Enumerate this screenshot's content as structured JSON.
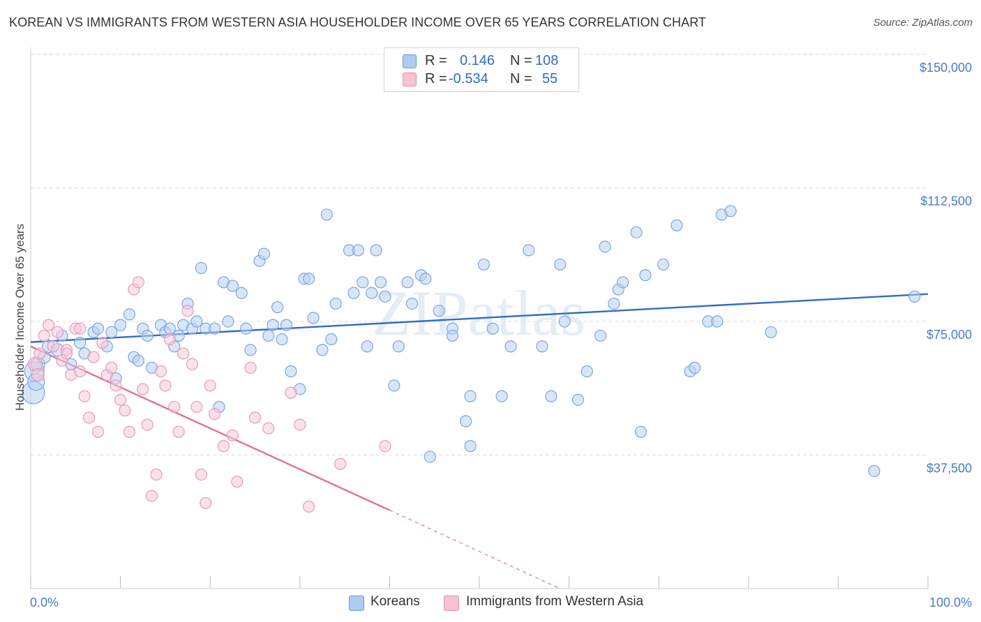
{
  "title": "KOREAN VS IMMIGRANTS FROM WESTERN ASIA HOUSEHOLDER INCOME OVER 65 YEARS CORRELATION CHART",
  "source": "Source: ZipAtlas.com",
  "watermark": "ZIPatlas",
  "legend": {
    "rows": [
      {
        "r_label": "R =",
        "r_value": "0.146",
        "n_label": "N =",
        "n_value": "108",
        "color": "#aecbf0",
        "border": "#6f9ad8"
      },
      {
        "r_label": "R =",
        "r_value": "-0.534",
        "n_label": "N =",
        "n_value": "55",
        "color": "#f7c2d3",
        "border": "#e88aa8"
      }
    ]
  },
  "bottom_legend": [
    "Koreans",
    "Immigrants from Western Asia"
  ],
  "chart_data": {
    "type": "scatter",
    "ylabel": "Householder Income Over 65 years",
    "xlim": [
      0,
      100
    ],
    "ylim": [
      0,
      150000
    ],
    "y_ticks": [
      {
        "value": 37500,
        "label": "$37,500"
      },
      {
        "value": 75000,
        "label": "$75,000"
      },
      {
        "value": 112500,
        "label": "$112,500"
      },
      {
        "value": 150000,
        "label": "$150,000"
      }
    ],
    "x_tick_labels": [
      {
        "value": 0,
        "label": "0.0%"
      },
      {
        "value": 100,
        "label": "100.0%"
      }
    ],
    "series": [
      {
        "name": "Koreans",
        "color": "#7aa6e0",
        "fill": "#b9d2f3",
        "trend": {
          "x0": 0,
          "y0": 69200,
          "x1": 100,
          "y1": 82700,
          "dashed_from": null
        },
        "points": [
          [
            0.3,
            55000,
            16
          ],
          [
            0.4,
            61000,
            14
          ],
          [
            0.6,
            58000,
            12
          ],
          [
            0.8,
            63000,
            10
          ],
          [
            1.5,
            65000,
            9
          ],
          [
            2.0,
            68000,
            9
          ],
          [
            3.0,
            67000,
            9
          ],
          [
            3.5,
            71000,
            8
          ],
          [
            4.5,
            63000,
            8
          ],
          [
            5.5,
            69000,
            8
          ],
          [
            6.0,
            66000,
            8
          ],
          [
            7.0,
            72000,
            8
          ],
          [
            7.5,
            73000,
            8
          ],
          [
            8.5,
            68000,
            8
          ],
          [
            9.0,
            72000,
            8
          ],
          [
            9.5,
            59000,
            8
          ],
          [
            10.0,
            74000,
            8
          ],
          [
            11.0,
            77000,
            8
          ],
          [
            11.5,
            65000,
            8
          ],
          [
            12.0,
            64000,
            8
          ],
          [
            12.5,
            73000,
            8
          ],
          [
            13.0,
            71000,
            8
          ],
          [
            13.5,
            62000,
            8
          ],
          [
            14.5,
            74000,
            8
          ],
          [
            15.0,
            72000,
            8
          ],
          [
            15.5,
            73000,
            8
          ],
          [
            16.0,
            68000,
            8
          ],
          [
            16.5,
            71000,
            8
          ],
          [
            17.0,
            74000,
            8
          ],
          [
            17.5,
            80000,
            8
          ],
          [
            18.0,
            73000,
            8
          ],
          [
            18.5,
            75000,
            8
          ],
          [
            19.0,
            90000,
            8
          ],
          [
            19.5,
            73000,
            8
          ],
          [
            20.5,
            73000,
            8
          ],
          [
            21.0,
            51000,
            8
          ],
          [
            21.5,
            86000,
            8
          ],
          [
            22.0,
            75000,
            8
          ],
          [
            22.5,
            85000,
            8
          ],
          [
            23.5,
            83000,
            8
          ],
          [
            24.0,
            73000,
            8
          ],
          [
            24.5,
            67000,
            8
          ],
          [
            25.5,
            92000,
            8
          ],
          [
            26.0,
            94000,
            8
          ],
          [
            26.5,
            71000,
            8
          ],
          [
            27.0,
            74000,
            8
          ],
          [
            27.5,
            79000,
            8
          ],
          [
            28.0,
            70000,
            8
          ],
          [
            28.5,
            74000,
            8
          ],
          [
            29.0,
            61000,
            8
          ],
          [
            30.0,
            56000,
            8
          ],
          [
            30.5,
            87000,
            8
          ],
          [
            31.0,
            87000,
            8
          ],
          [
            31.5,
            76000,
            8
          ],
          [
            32.5,
            67000,
            8
          ],
          [
            33.0,
            105000,
            8
          ],
          [
            33.5,
            70000,
            8
          ],
          [
            34.0,
            80000,
            8
          ],
          [
            35.5,
            95000,
            8
          ],
          [
            36.0,
            83000,
            8
          ],
          [
            36.5,
            95000,
            8
          ],
          [
            37.0,
            86000,
            8
          ],
          [
            37.5,
            68000,
            8
          ],
          [
            38.0,
            83000,
            8
          ],
          [
            38.5,
            95000,
            8
          ],
          [
            39.0,
            86000,
            8
          ],
          [
            39.5,
            82000,
            8
          ],
          [
            40.5,
            57000,
            8
          ],
          [
            41.0,
            68000,
            8
          ],
          [
            42.0,
            86000,
            8
          ],
          [
            42.5,
            80000,
            8
          ],
          [
            43.5,
            88000,
            8
          ],
          [
            44.0,
            87000,
            8
          ],
          [
            44.5,
            37000,
            8
          ],
          [
            45.5,
            78000,
            8
          ],
          [
            47.0,
            73000,
            8
          ],
          [
            47.0,
            71000,
            8
          ],
          [
            48.5,
            47000,
            8
          ],
          [
            49.0,
            40000,
            8
          ],
          [
            49.0,
            54000,
            8
          ],
          [
            50.5,
            91000,
            8
          ],
          [
            51.5,
            73000,
            8
          ],
          [
            52.5,
            54000,
            8
          ],
          [
            53.5,
            68000,
            8
          ],
          [
            55.5,
            95000,
            8
          ],
          [
            57.0,
            68000,
            8
          ],
          [
            58.0,
            54000,
            8
          ],
          [
            59.0,
            91000,
            8
          ],
          [
            59.5,
            75000,
            8
          ],
          [
            61.0,
            53000,
            8
          ],
          [
            62.0,
            61000,
            8
          ],
          [
            63.5,
            71000,
            8
          ],
          [
            64.0,
            96000,
            8
          ],
          [
            65.0,
            80000,
            8
          ],
          [
            65.5,
            84000,
            8
          ],
          [
            66.0,
            86000,
            8
          ],
          [
            67.5,
            100000,
            8
          ],
          [
            68.5,
            88000,
            8
          ],
          [
            68.0,
            44000,
            8
          ],
          [
            70.5,
            91000,
            8
          ],
          [
            72.0,
            102000,
            8
          ],
          [
            73.5,
            61000,
            8
          ],
          [
            74.0,
            62000,
            8
          ],
          [
            75.5,
            75000,
            8
          ],
          [
            76.5,
            75000,
            8
          ],
          [
            77.0,
            105000,
            8
          ],
          [
            78.0,
            106000,
            8
          ],
          [
            82.5,
            72000,
            8
          ],
          [
            98.5,
            82000,
            8
          ],
          [
            94.0,
            33000,
            8
          ]
        ]
      },
      {
        "name": "Immigrants from Western Asia",
        "color": "#e89ab4",
        "fill": "#f8c9d8",
        "trend": {
          "x0": 0,
          "y0": 68000,
          "x1": 40,
          "y1": 22000,
          "dashed_from": 40,
          "dash_x1": 65,
          "dash_y1": -7000
        },
        "points": [
          [
            0.5,
            63000,
            10
          ],
          [
            0.8,
            60000,
            9
          ],
          [
            1.0,
            66000,
            8
          ],
          [
            1.5,
            71000,
            8
          ],
          [
            2.0,
            74000,
            8
          ],
          [
            2.5,
            68000,
            8
          ],
          [
            3.0,
            72000,
            8
          ],
          [
            3.5,
            64000,
            8
          ],
          [
            4.0,
            67000,
            8
          ],
          [
            4.5,
            60000,
            8
          ],
          [
            5.0,
            73000,
            8
          ],
          [
            5.5,
            61000,
            8
          ],
          [
            6.0,
            54000,
            8
          ],
          [
            6.5,
            48000,
            8
          ],
          [
            7.0,
            65000,
            8
          ],
          [
            7.5,
            44000,
            8
          ],
          [
            8.0,
            69000,
            8
          ],
          [
            8.5,
            60000,
            8
          ],
          [
            9.0,
            62000,
            8
          ],
          [
            9.5,
            57000,
            8
          ],
          [
            10.0,
            53000,
            8
          ],
          [
            10.5,
            50000,
            8
          ],
          [
            11.0,
            44000,
            8
          ],
          [
            11.5,
            84000,
            8
          ],
          [
            12.0,
            86000,
            8
          ],
          [
            12.5,
            56000,
            8
          ],
          [
            13.0,
            46000,
            8
          ],
          [
            13.5,
            26000,
            8
          ],
          [
            14.0,
            32000,
            8
          ],
          [
            14.5,
            61000,
            8
          ],
          [
            15.0,
            57000,
            8
          ],
          [
            15.5,
            70000,
            8
          ],
          [
            16.0,
            51000,
            8
          ],
          [
            16.5,
            44000,
            8
          ],
          [
            17.0,
            66000,
            8
          ],
          [
            17.5,
            78000,
            8
          ],
          [
            18.0,
            63000,
            8
          ],
          [
            18.5,
            51000,
            8
          ],
          [
            19.0,
            32000,
            8
          ],
          [
            19.5,
            24000,
            8
          ],
          [
            20.0,
            57000,
            8
          ],
          [
            20.5,
            49000,
            8
          ],
          [
            21.5,
            40000,
            8
          ],
          [
            22.5,
            43000,
            8
          ],
          [
            23.0,
            30000,
            8
          ],
          [
            24.5,
            62000,
            8
          ],
          [
            25.0,
            48000,
            8
          ],
          [
            26.5,
            45000,
            8
          ],
          [
            29.0,
            55000,
            8
          ],
          [
            30.0,
            46000,
            8
          ],
          [
            31.0,
            23000,
            8
          ],
          [
            34.5,
            35000,
            8
          ],
          [
            39.5,
            40000,
            8
          ],
          [
            4.0,
            66000,
            8
          ],
          [
            5.5,
            73000,
            8
          ]
        ]
      }
    ]
  }
}
